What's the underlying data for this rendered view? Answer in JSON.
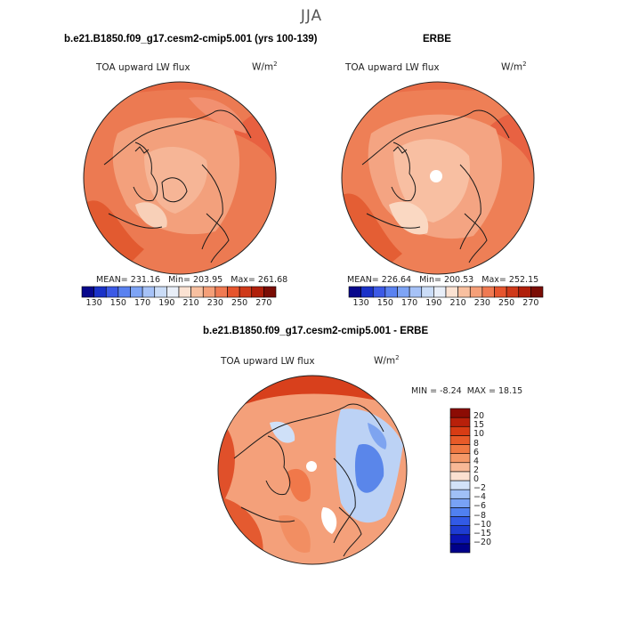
{
  "suptitle": "JJA",
  "panels": {
    "top_left": {
      "title": "b.e21.B1850.f09_g17.cesm2-cmip5.001 (yrs 100-139)",
      "variable": "TOA upward LW flux",
      "units": "W/m",
      "units_sup": "2",
      "stats": {
        "mean_label": "MEAN=",
        "mean": "231.16",
        "min_label": "Min=",
        "min": "203.95",
        "max_label": "Max=",
        "max": "261.68"
      }
    },
    "top_right": {
      "title": "ERBE",
      "variable": "TOA upward LW flux",
      "units": "W/m",
      "units_sup": "2",
      "stats": {
        "mean_label": "MEAN=",
        "mean": "226.64",
        "min_label": "Min=",
        "min": "200.53",
        "max_label": "Max=",
        "max": "252.15"
      }
    },
    "bottom": {
      "title": "b.e21.B1850.f09_g17.cesm2-cmip5.001 - ERBE",
      "variable": "TOA upward LW flux",
      "units": "W/m",
      "units_sup": "2",
      "stats": {
        "min_label": "MIN =",
        "min": "-8.24",
        "max_label": "MAX =",
        "max": "18.15"
      }
    }
  },
  "chart_data": [
    {
      "type": "heatmap",
      "projection": "north-polar-stereographic",
      "title": "b.e21.B1850.f09_g17.cesm2-cmip5.001 (yrs 100-139)",
      "variable": "TOA upward LW flux",
      "units": "W/m2",
      "mean": 231.16,
      "min": 203.95,
      "max": 261.68,
      "colorbar": {
        "orientation": "horizontal",
        "levels": [
          130,
          140,
          150,
          160,
          170,
          180,
          190,
          200,
          210,
          220,
          230,
          240,
          250,
          260,
          270
        ],
        "tick_labels": [
          "130",
          "150",
          "170",
          "190",
          "210",
          "230",
          "250",
          "270"
        ],
        "colors": [
          "#08088c",
          "#1a32c8",
          "#3c5ae6",
          "#5a82f0",
          "#7ea4f5",
          "#a6c2f7",
          "#cadcf7",
          "#e8eef8",
          "#fbe2d2",
          "#f8c0a0",
          "#f59f78",
          "#f07a52",
          "#e6552e",
          "#cf3a1a",
          "#b01f0a",
          "#7a0d05"
        ]
      }
    },
    {
      "type": "heatmap",
      "projection": "north-polar-stereographic",
      "title": "ERBE",
      "variable": "TOA upward LW flux",
      "units": "W/m2",
      "mean": 226.64,
      "min": 200.53,
      "max": 252.15,
      "colorbar": {
        "orientation": "horizontal",
        "levels": [
          130,
          140,
          150,
          160,
          170,
          180,
          190,
          200,
          210,
          220,
          230,
          240,
          250,
          260,
          270
        ],
        "tick_labels": [
          "130",
          "150",
          "170",
          "190",
          "210",
          "230",
          "250",
          "270"
        ],
        "colors": [
          "#08088c",
          "#1a32c8",
          "#3c5ae6",
          "#5a82f0",
          "#7ea4f5",
          "#a6c2f7",
          "#cadcf7",
          "#e8eef8",
          "#fbe2d2",
          "#f8c0a0",
          "#f59f78",
          "#f07a52",
          "#e6552e",
          "#cf3a1a",
          "#b01f0a",
          "#7a0d05"
        ]
      }
    },
    {
      "type": "heatmap",
      "projection": "north-polar-stereographic",
      "title": "b.e21.B1850.f09_g17.cesm2-cmip5.001 - ERBE",
      "variable": "TOA upward LW flux",
      "units": "W/m2",
      "min": -8.24,
      "max": 18.15,
      "colorbar": {
        "orientation": "vertical",
        "levels": [
          -20,
          -15,
          -10,
          -8,
          -6,
          -4,
          -2,
          0,
          2,
          4,
          6,
          8,
          10,
          15,
          20
        ],
        "tick_labels": [
          "20",
          "15",
          "10",
          "8",
          "6",
          "4",
          "2",
          "0",
          "−2",
          "−4",
          "−6",
          "−8",
          "−10",
          "−15",
          "−20"
        ],
        "colors": [
          "#00008a",
          "#0a14b4",
          "#1e3cd2",
          "#325ae6",
          "#5080f0",
          "#78a2f5",
          "#a0c0f7",
          "#d2e2f8",
          "#fbe0d0",
          "#f8b896",
          "#f59868",
          "#f07842",
          "#e85a28",
          "#d83c14",
          "#b8200a",
          "#8c0c04"
        ]
      }
    }
  ]
}
